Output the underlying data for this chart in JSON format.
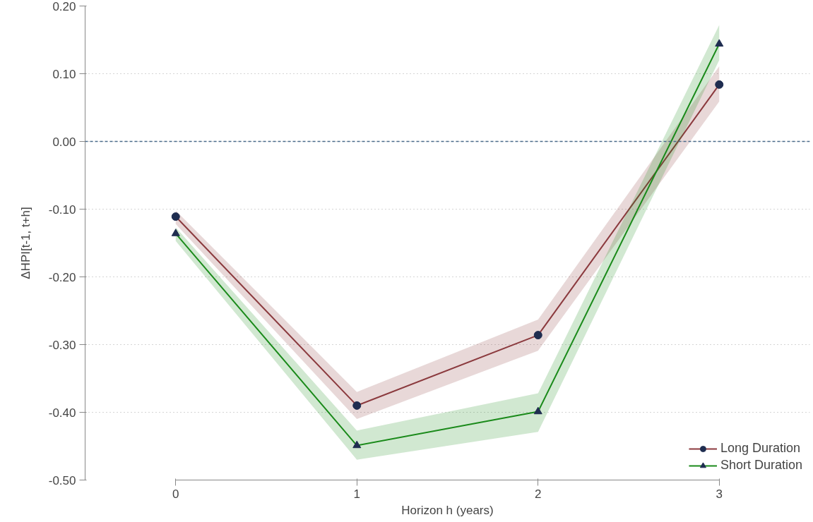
{
  "chart_data": {
    "type": "line",
    "xlabel": "Horizon h (years)",
    "ylabel": "ΔHPI[t-1, t+h]",
    "x": [
      0,
      1,
      2,
      3
    ],
    "xlim": [
      -0.5,
      3.5
    ],
    "xticks": [
      0,
      1,
      2,
      3
    ],
    "ylim": [
      -0.5,
      0.2
    ],
    "yticks": [
      {
        "value": -0.5,
        "label": "-0.50"
      },
      {
        "value": -0.4,
        "label": "-0.40"
      },
      {
        "value": -0.3,
        "label": "-0.30"
      },
      {
        "value": -0.2,
        "label": "-0.20"
      },
      {
        "value": -0.1,
        "label": "-0.10"
      },
      {
        "value": 0,
        "label": "0.00"
      },
      {
        "value": 0.1,
        "label": "0.10"
      },
      {
        "value": 0.2,
        "label": "0.20"
      }
    ],
    "grid": "y",
    "legend": "bottom right",
    "line_style": "solid",
    "ref_lines": [
      {
        "axis": "y",
        "value": 0,
        "color": "#4a6b8a",
        "line_style": "dashed"
      }
    ],
    "series": [
      {
        "name": "Long Duration",
        "color": "#8b3a3e",
        "marker": "circle",
        "values": [
          -0.111,
          -0.39,
          -0.286,
          0.084
        ],
        "lower": [
          -0.122,
          -0.41,
          -0.309,
          0.059
        ],
        "upper": [
          -0.102,
          -0.37,
          -0.263,
          0.111
        ]
      },
      {
        "name": "Short Duration",
        "color": "#1a8a1a",
        "marker": "triangle",
        "values": [
          -0.136,
          -0.449,
          -0.399,
          0.144
        ],
        "lower": [
          -0.147,
          -0.47,
          -0.429,
          0.12
        ],
        "upper": [
          -0.127,
          -0.427,
          -0.372,
          0.172
        ]
      }
    ]
  }
}
